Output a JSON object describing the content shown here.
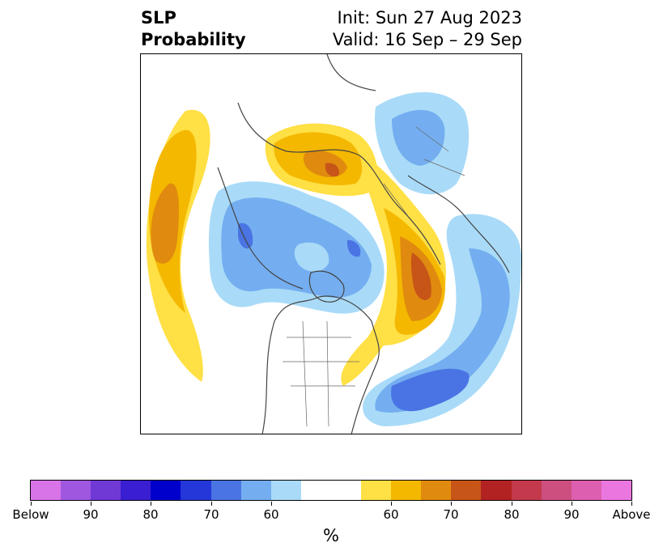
{
  "title": {
    "left_line1": "SLP",
    "left_line2": "Probability",
    "right_line1": "Init: Sun 27 Aug 2023",
    "right_line2": "Valid: 16 Sep – 29 Sep"
  },
  "colorbar": {
    "colors": [
      "#d874e8",
      "#a057e0",
      "#7039d6",
      "#3a1fd2",
      "#0000cc",
      "#2437d8",
      "#4a74e3",
      "#74aef0",
      "#a9dbf8",
      "#ffffff",
      "#ffe045",
      "#f4b800",
      "#e08b0f",
      "#c75518",
      "#b22222",
      "#c43a4c",
      "#cc4f80",
      "#dd5fb0",
      "#ea77e0"
    ],
    "tick_labels": [
      "Below",
      "90",
      "80",
      "70",
      "60",
      "60",
      "70",
      "80",
      "90",
      "Above"
    ],
    "unit": "%"
  }
}
